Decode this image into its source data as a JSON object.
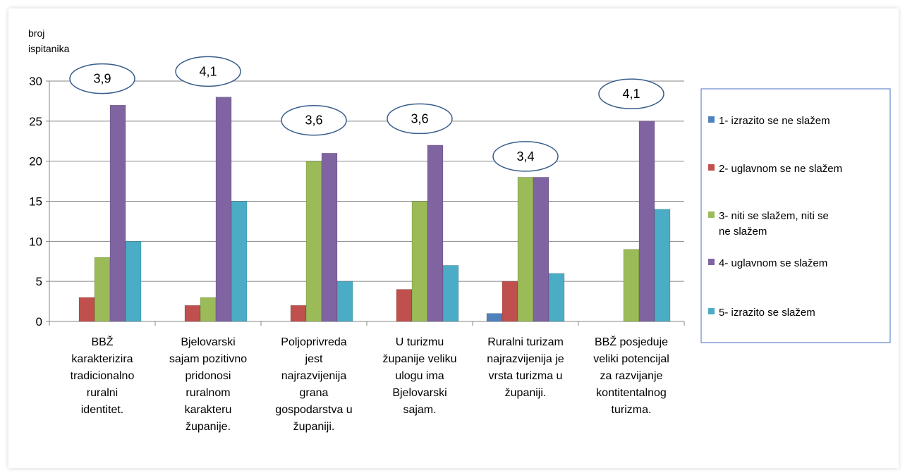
{
  "chart_data": {
    "type": "bar",
    "ylabel_lines": [
      "broj",
      "ispitanika"
    ],
    "ylim": [
      0,
      30
    ],
    "yticks": [
      0,
      5,
      10,
      15,
      20,
      25,
      30
    ],
    "grid": true,
    "legend_position": "right",
    "categories": [
      [
        "BBŽ",
        "karakterizira",
        "tradicionalno",
        "ruralni",
        "identitet."
      ],
      [
        "Bjelovarski",
        "sajam pozitivno",
        "pridonosi",
        "ruralnom",
        "karakteru",
        "županije."
      ],
      [
        "Poljoprivreda",
        "jest",
        "najrazvijenija",
        "grana",
        "gospodarstva u",
        "županiji."
      ],
      [
        "U turizmu",
        "županije veliku",
        "ulogu ima",
        "Bjelovarski",
        "sajam."
      ],
      [
        "Ruralni turizam",
        "najrazvijenija je",
        "vrsta turizma u",
        "županiji."
      ],
      [
        "BBŽ posjeduje",
        "veliki potencijal",
        "za razvijanje",
        "kontitentalnog",
        "turizma."
      ]
    ],
    "series": [
      {
        "name": "1- izrazito se ne slažem",
        "legend_lines": [
          "1- izrazito se ne slažem"
        ],
        "color": "#4f81bd",
        "values": [
          0,
          0,
          0,
          0,
          1,
          0
        ]
      },
      {
        "name": "2- uglavnom se ne slažem",
        "legend_lines": [
          "2- uglavnom se ne slažem"
        ],
        "color": "#c0504d",
        "values": [
          3,
          2,
          2,
          4,
          5,
          0
        ]
      },
      {
        "name": "3- niti se slažem, niti se ne slažem",
        "legend_lines": [
          "3- niti se slažem, niti se",
          "ne slažem"
        ],
        "color": "#9bbb59",
        "values": [
          8,
          3,
          20,
          15,
          18,
          9
        ]
      },
      {
        "name": "4- uglavnom se slažem",
        "legend_lines": [
          "4- uglavnom se slažem"
        ],
        "color": "#8064a2",
        "values": [
          27,
          28,
          21,
          22,
          18,
          25
        ]
      },
      {
        "name": "5- izrazito se slažem",
        "legend_lines": [
          "5- izrazito se slažem"
        ],
        "color": "#4bacc6",
        "values": [
          10,
          15,
          5,
          7,
          6,
          14
        ]
      }
    ],
    "annotations": [
      "3,9",
      "4,1",
      "3,6",
      "3,6",
      "3,4",
      "4,1"
    ],
    "annotation_levels": [
      30.3,
      31.2,
      25.1,
      25.3,
      20.6,
      28.4
    ]
  }
}
